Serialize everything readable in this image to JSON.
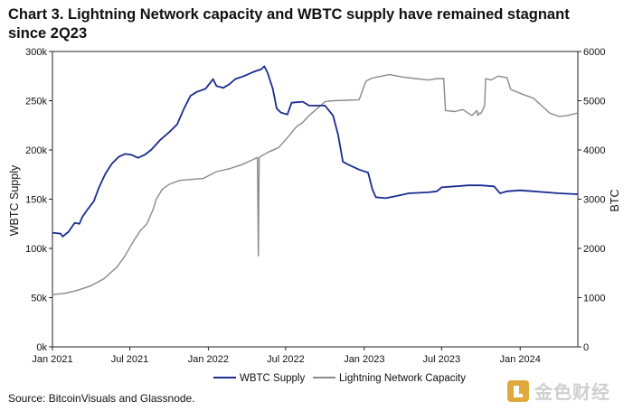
{
  "chart_data": {
    "type": "line",
    "title": "Chart 3. Lightning Network capacity and WBTC supply have remained stagnant since 2Q23",
    "source": "Source: BitcoinVisuals and Glassnode.",
    "x_ticks": [
      "Jan 2021",
      "Jul 2021",
      "Jan 2022",
      "Jul 2022",
      "Jan 2023",
      "Jul 2023",
      "Jan 2024"
    ],
    "x_range": [
      "2021-01-01",
      "2024-05-15"
    ],
    "y_left": {
      "label": "WBTC Supply",
      "range": [
        0,
        300000
      ],
      "ticks": [
        "0k",
        "50k",
        "100k",
        "150k",
        "200k",
        "250k",
        "300k"
      ]
    },
    "y_right": {
      "label": "BTC",
      "range": [
        0,
        6000
      ],
      "ticks": [
        "0",
        "1000",
        "2000",
        "3000",
        "4000",
        "5000",
        "6000"
      ]
    },
    "legend_position": "bottom-center",
    "grid": false,
    "series": [
      {
        "name": "WBTC Supply",
        "axis": "left",
        "color": "#1b2c8f",
        "points": [
          [
            "2021-01-01",
            116000
          ],
          [
            "2021-01-20",
            115000
          ],
          [
            "2021-01-25",
            112000
          ],
          [
            "2021-02-08",
            117000
          ],
          [
            "2021-02-22",
            126000
          ],
          [
            "2021-03-05",
            125000
          ],
          [
            "2021-03-12",
            132000
          ],
          [
            "2021-03-25",
            140000
          ],
          [
            "2021-04-08",
            148000
          ],
          [
            "2021-04-20",
            162000
          ],
          [
            "2021-05-05",
            176000
          ],
          [
            "2021-05-20",
            186000
          ],
          [
            "2021-06-05",
            193000
          ],
          [
            "2021-06-20",
            196000
          ],
          [
            "2021-07-05",
            195000
          ],
          [
            "2021-07-20",
            192000
          ],
          [
            "2021-08-05",
            195000
          ],
          [
            "2021-08-20",
            200000
          ],
          [
            "2021-09-10",
            210000
          ],
          [
            "2021-10-01",
            218000
          ],
          [
            "2021-10-20",
            226000
          ],
          [
            "2021-11-05",
            242000
          ],
          [
            "2021-11-20",
            255000
          ],
          [
            "2021-12-05",
            259000
          ],
          [
            "2021-12-25",
            262000
          ],
          [
            "2022-01-05",
            268000
          ],
          [
            "2022-01-12",
            272000
          ],
          [
            "2022-01-20",
            265000
          ],
          [
            "2022-02-05",
            263000
          ],
          [
            "2022-02-20",
            267000
          ],
          [
            "2022-03-05",
            272000
          ],
          [
            "2022-03-25",
            275000
          ],
          [
            "2022-04-15",
            279000
          ],
          [
            "2022-05-05",
            282000
          ],
          [
            "2022-05-12",
            285000
          ],
          [
            "2022-05-20",
            278000
          ],
          [
            "2022-06-01",
            262000
          ],
          [
            "2022-06-10",
            242000
          ],
          [
            "2022-06-20",
            238000
          ],
          [
            "2022-07-05",
            236000
          ],
          [
            "2022-07-15",
            248000
          ],
          [
            "2022-08-10",
            249000
          ],
          [
            "2022-08-25",
            245000
          ],
          [
            "2022-10-01",
            245000
          ],
          [
            "2022-10-20",
            235000
          ],
          [
            "2022-11-01",
            215000
          ],
          [
            "2022-11-12",
            188000
          ],
          [
            "2022-11-25",
            185000
          ],
          [
            "2022-12-20",
            180000
          ],
          [
            "2023-01-10",
            177000
          ],
          [
            "2023-01-20",
            160000
          ],
          [
            "2023-01-28",
            152000
          ],
          [
            "2023-02-20",
            151000
          ],
          [
            "2023-03-15",
            153000
          ],
          [
            "2023-04-15",
            156000
          ],
          [
            "2023-06-01",
            157000
          ],
          [
            "2023-06-20",
            158000
          ],
          [
            "2023-07-01",
            162000
          ],
          [
            "2023-08-01",
            163000
          ],
          [
            "2023-09-01",
            164000
          ],
          [
            "2023-10-01",
            164000
          ],
          [
            "2023-11-01",
            163000
          ],
          [
            "2023-11-15",
            156000
          ],
          [
            "2023-12-01",
            158000
          ],
          [
            "2024-01-01",
            159000
          ],
          [
            "2024-02-01",
            158000
          ],
          [
            "2024-03-01",
            157000
          ],
          [
            "2024-04-01",
            156000
          ],
          [
            "2024-05-15",
            155000
          ]
        ]
      },
      {
        "name": "Lightning Network Capacity",
        "axis": "right",
        "color": "#8a8a8a",
        "points": [
          [
            "2021-01-01",
            1060
          ],
          [
            "2021-02-01",
            1090
          ],
          [
            "2021-03-01",
            1150
          ],
          [
            "2021-04-01",
            1240
          ],
          [
            "2021-05-01",
            1380
          ],
          [
            "2021-06-01",
            1620
          ],
          [
            "2021-06-20",
            1850
          ],
          [
            "2021-07-10",
            2150
          ],
          [
            "2021-07-25",
            2350
          ],
          [
            "2021-08-10",
            2500
          ],
          [
            "2021-08-25",
            2800
          ],
          [
            "2021-09-01",
            3000
          ],
          [
            "2021-09-15",
            3200
          ],
          [
            "2021-10-01",
            3300
          ],
          [
            "2021-10-25",
            3380
          ],
          [
            "2021-11-20",
            3400
          ],
          [
            "2021-12-20",
            3420
          ],
          [
            "2022-01-20",
            3560
          ],
          [
            "2022-02-20",
            3620
          ],
          [
            "2022-03-20",
            3700
          ],
          [
            "2022-04-15",
            3800
          ],
          [
            "2022-04-26",
            3850
          ],
          [
            "2022-04-28",
            1850
          ],
          [
            "2022-04-30",
            3850
          ],
          [
            "2022-05-20",
            3950
          ],
          [
            "2022-06-15",
            4050
          ],
          [
            "2022-07-10",
            4300
          ],
          [
            "2022-07-25",
            4460
          ],
          [
            "2022-08-10",
            4560
          ],
          [
            "2022-08-25",
            4700
          ],
          [
            "2022-09-10",
            4820
          ],
          [
            "2022-10-01",
            4980
          ],
          [
            "2022-10-20",
            5000
          ],
          [
            "2022-11-20",
            5010
          ],
          [
            "2022-12-20",
            5020
          ],
          [
            "2023-01-05",
            5400
          ],
          [
            "2023-01-20",
            5460
          ],
          [
            "2023-02-10",
            5500
          ],
          [
            "2023-03-01",
            5530
          ],
          [
            "2023-04-01",
            5480
          ],
          [
            "2023-05-01",
            5450
          ],
          [
            "2023-06-01",
            5420
          ],
          [
            "2023-06-20",
            5450
          ],
          [
            "2023-07-06",
            5450
          ],
          [
            "2023-07-10",
            4800
          ],
          [
            "2023-08-01",
            4780
          ],
          [
            "2023-08-20",
            4820
          ],
          [
            "2023-09-10",
            4700
          ],
          [
            "2023-09-22",
            4800
          ],
          [
            "2023-09-24",
            4700
          ],
          [
            "2023-09-28",
            4750
          ],
          [
            "2023-10-01",
            4740
          ],
          [
            "2023-10-10",
            4900
          ],
          [
            "2023-10-12",
            5450
          ],
          [
            "2023-10-25",
            5420
          ],
          [
            "2023-11-10",
            5500
          ],
          [
            "2023-12-01",
            5470
          ],
          [
            "2023-12-10",
            5230
          ],
          [
            "2024-01-01",
            5150
          ],
          [
            "2024-02-01",
            5050
          ],
          [
            "2024-02-20",
            4900
          ],
          [
            "2024-03-10",
            4750
          ],
          [
            "2024-04-01",
            4680
          ],
          [
            "2024-04-20",
            4700
          ],
          [
            "2024-05-15",
            4750
          ]
        ]
      }
    ]
  },
  "watermark": {
    "text": "金色财经"
  }
}
